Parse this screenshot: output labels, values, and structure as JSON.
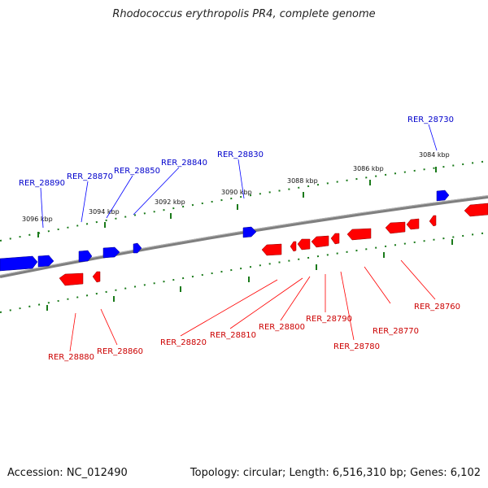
{
  "title": "Rhodococcus erythropolis PR4, complete genome",
  "footer": {
    "accession": "Accession: NC_012490",
    "summary": "Topology: circular; Length: 6,516,310 bp; Genes: 6,102"
  },
  "colors": {
    "forward_gene": "#0000ff",
    "reverse_gene": "#ff0000",
    "backbone": "#808080",
    "ruler_dots": "#1a7a1a"
  },
  "ticks": [
    {
      "label": "3096 kbp"
    },
    {
      "label": "3094 kbp"
    },
    {
      "label": "3092 kbp"
    },
    {
      "label": "3090 kbp"
    },
    {
      "label": "3088 kbp"
    },
    {
      "label": "3086 kbp"
    },
    {
      "label": "3084 kbp"
    }
  ],
  "forward_genes": [
    {
      "label": "RER_28890"
    },
    {
      "label": "RER_28870"
    },
    {
      "label": "RER_28850"
    },
    {
      "label": "RER_28840"
    },
    {
      "label": "RER_28830"
    },
    {
      "label": "RER_28730"
    }
  ],
  "reverse_genes": [
    {
      "label": "RER_28880"
    },
    {
      "label": "RER_28860"
    },
    {
      "label": "RER_28820"
    },
    {
      "label": "RER_28810"
    },
    {
      "label": "RER_28800"
    },
    {
      "label": "RER_28790"
    },
    {
      "label": "RER_28780"
    },
    {
      "label": "RER_28770"
    },
    {
      "label": "RER_28760"
    }
  ]
}
